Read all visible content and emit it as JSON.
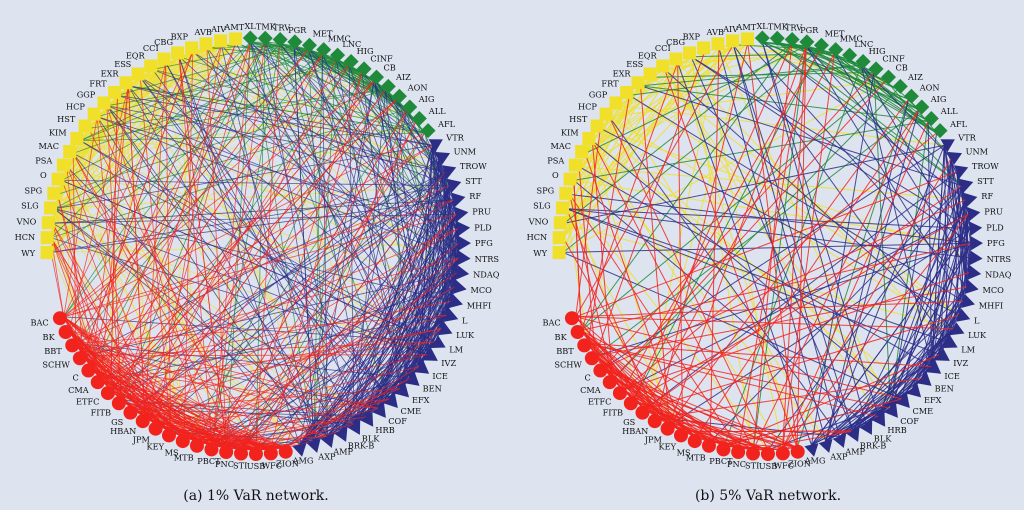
{
  "figure": {
    "captions": [
      "(a) 1% VaR network.",
      "(b) 5% VaR network."
    ]
  },
  "colors": {
    "banks": "#f2231d",
    "diversified_financials": "#2b2d87",
    "insurance": "#1f8a3a",
    "real_estate": "#f0e02a",
    "background": "#dde3ef"
  },
  "nodes": [
    {
      "label": "WY",
      "group": "real_estate"
    },
    {
      "label": "HCN",
      "group": "real_estate"
    },
    {
      "label": "VNO",
      "group": "real_estate"
    },
    {
      "label": "SLG",
      "group": "real_estate"
    },
    {
      "label": "SPG",
      "group": "real_estate"
    },
    {
      "label": "O",
      "group": "real_estate"
    },
    {
      "label": "PSA",
      "group": "real_estate"
    },
    {
      "label": "MAC",
      "group": "real_estate"
    },
    {
      "label": "KIM",
      "group": "real_estate"
    },
    {
      "label": "HST",
      "group": "real_estate"
    },
    {
      "label": "HCP",
      "group": "real_estate"
    },
    {
      "label": "GGP",
      "group": "real_estate"
    },
    {
      "label": "FRT",
      "group": "real_estate"
    },
    {
      "label": "EXR",
      "group": "real_estate"
    },
    {
      "label": "ESS",
      "group": "real_estate"
    },
    {
      "label": "EQR",
      "group": "real_estate"
    },
    {
      "label": "CCI",
      "group": "real_estate"
    },
    {
      "label": "CBG",
      "group": "real_estate"
    },
    {
      "label": "BXP",
      "group": "real_estate"
    },
    {
      "label": "AVB",
      "group": "real_estate"
    },
    {
      "label": "AIV",
      "group": "real_estate"
    },
    {
      "label": "AMT",
      "group": "real_estate"
    },
    {
      "label": "XL",
      "group": "insurance"
    },
    {
      "label": "TMK",
      "group": "insurance"
    },
    {
      "label": "TRV",
      "group": "insurance"
    },
    {
      "label": "PGR",
      "group": "insurance"
    },
    {
      "label": "MET",
      "group": "insurance"
    },
    {
      "label": "MMC",
      "group": "insurance"
    },
    {
      "label": "LNC",
      "group": "insurance"
    },
    {
      "label": "HIG",
      "group": "insurance"
    },
    {
      "label": "CINF",
      "group": "insurance"
    },
    {
      "label": "CB",
      "group": "insurance"
    },
    {
      "label": "AIZ",
      "group": "insurance"
    },
    {
      "label": "AON",
      "group": "insurance"
    },
    {
      "label": "AIG",
      "group": "insurance"
    },
    {
      "label": "ALL",
      "group": "insurance"
    },
    {
      "label": "AFL",
      "group": "insurance"
    },
    {
      "label": "VTR",
      "group": "diversified_financials"
    },
    {
      "label": "UNM",
      "group": "diversified_financials"
    },
    {
      "label": "TROW",
      "group": "diversified_financials"
    },
    {
      "label": "STT",
      "group": "diversified_financials"
    },
    {
      "label": "RF",
      "group": "diversified_financials"
    },
    {
      "label": "PRU",
      "group": "diversified_financials"
    },
    {
      "label": "PLD",
      "group": "diversified_financials"
    },
    {
      "label": "PFG",
      "group": "diversified_financials"
    },
    {
      "label": "NTRS",
      "group": "diversified_financials"
    },
    {
      "label": "NDAQ",
      "group": "diversified_financials"
    },
    {
      "label": "MCO",
      "group": "diversified_financials"
    },
    {
      "label": "MHFI",
      "group": "diversified_financials"
    },
    {
      "label": "L",
      "group": "diversified_financials"
    },
    {
      "label": "LUK",
      "group": "diversified_financials"
    },
    {
      "label": "LM",
      "group": "diversified_financials"
    },
    {
      "label": "IVZ",
      "group": "diversified_financials"
    },
    {
      "label": "ICE",
      "group": "diversified_financials"
    },
    {
      "label": "BEN",
      "group": "diversified_financials"
    },
    {
      "label": "EFX",
      "group": "diversified_financials"
    },
    {
      "label": "CME",
      "group": "diversified_financials"
    },
    {
      "label": "COF",
      "group": "diversified_financials"
    },
    {
      "label": "HRB",
      "group": "diversified_financials"
    },
    {
      "label": "BLK",
      "group": "diversified_financials"
    },
    {
      "label": "BRK-B",
      "group": "diversified_financials"
    },
    {
      "label": "AMP",
      "group": "diversified_financials"
    },
    {
      "label": "AXP",
      "group": "diversified_financials"
    },
    {
      "label": "AMG",
      "group": "diversified_financials"
    },
    {
      "label": "ZION",
      "group": "banks"
    },
    {
      "label": "WFC",
      "group": "banks"
    },
    {
      "label": "USB",
      "group": "banks"
    },
    {
      "label": "STI",
      "group": "banks"
    },
    {
      "label": "PNC",
      "group": "banks"
    },
    {
      "label": "PBCT",
      "group": "banks"
    },
    {
      "label": "MTB",
      "group": "banks"
    },
    {
      "label": "MS",
      "group": "banks"
    },
    {
      "label": "KEY",
      "group": "banks"
    },
    {
      "label": "JPM",
      "group": "banks"
    },
    {
      "label": "HBAN",
      "group": "banks"
    },
    {
      "label": "GS",
      "group": "banks"
    },
    {
      "label": "FITB",
      "group": "banks"
    },
    {
      "label": "ETFC",
      "group": "banks"
    },
    {
      "label": "CMA",
      "group": "banks"
    },
    {
      "label": "C",
      "group": "banks"
    },
    {
      "label": "SCHW",
      "group": "banks"
    },
    {
      "label": "BBT",
      "group": "banks"
    },
    {
      "label": "BK",
      "group": "banks"
    },
    {
      "label": "BAC",
      "group": "banks"
    }
  ]
}
